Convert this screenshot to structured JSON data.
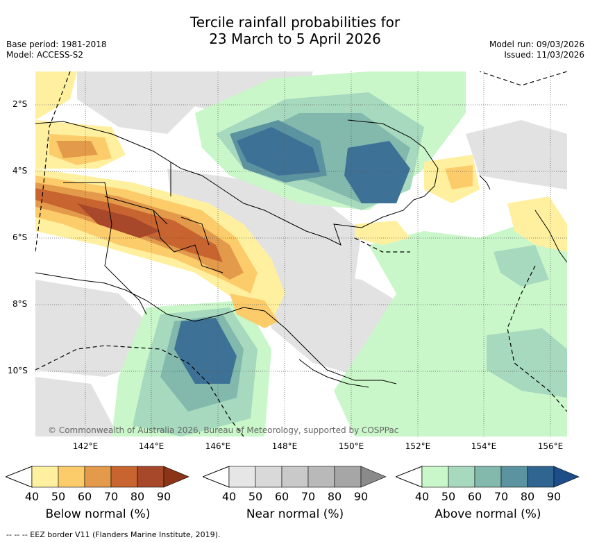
{
  "title_line1": "Tercile rainfall probabilities for",
  "title_line2": "23 March to 5 April 2026",
  "base_period": "Base period: 1981-2018",
  "model": "Model: ACCESS-S2",
  "model_run": "Model run: 09/03/2026",
  "issued": "Issued: 11/03/2026",
  "lat_labels": [
    "2°S",
    "4°S",
    "6°S",
    "8°S",
    "10°S"
  ],
  "lon_labels": [
    "142°E",
    "144°E",
    "146°E",
    "148°E",
    "150°E",
    "152°E",
    "154°E",
    "156°E"
  ],
  "copyright": "© Commonwealth of Australia 2026, Bureau of Meteorology, supported by COSPPac",
  "colorbars": [
    {
      "title": "Below normal (%)",
      "ticks": [
        "40",
        "50",
        "60",
        "70",
        "80",
        "90"
      ],
      "colors": [
        "#fff0a0",
        "#fccc6a",
        "#e39a4a",
        "#c8642f",
        "#a8482a",
        "#8a3418"
      ]
    },
    {
      "title": "Near normal (%)",
      "ticks": [
        "40",
        "50",
        "60",
        "70",
        "80",
        "90"
      ],
      "colors": [
        "#e6e6e6",
        "#d9d9d9",
        "#c9c9c9",
        "#b9b9b9",
        "#a6a6a6",
        "#8a8a8a"
      ]
    },
    {
      "title": "Above normal (%)",
      "ticks": [
        "40",
        "50",
        "60",
        "70",
        "80",
        "90"
      ],
      "colors": [
        "#c9f7c9",
        "#a6d9bd",
        "#82b9ac",
        "#5c93a0",
        "#2f6590",
        "#1d4e88"
      ]
    }
  ],
  "footer": "--  --  -- EEZ border V11 (Flanders Marine Institute, 2019)."
}
